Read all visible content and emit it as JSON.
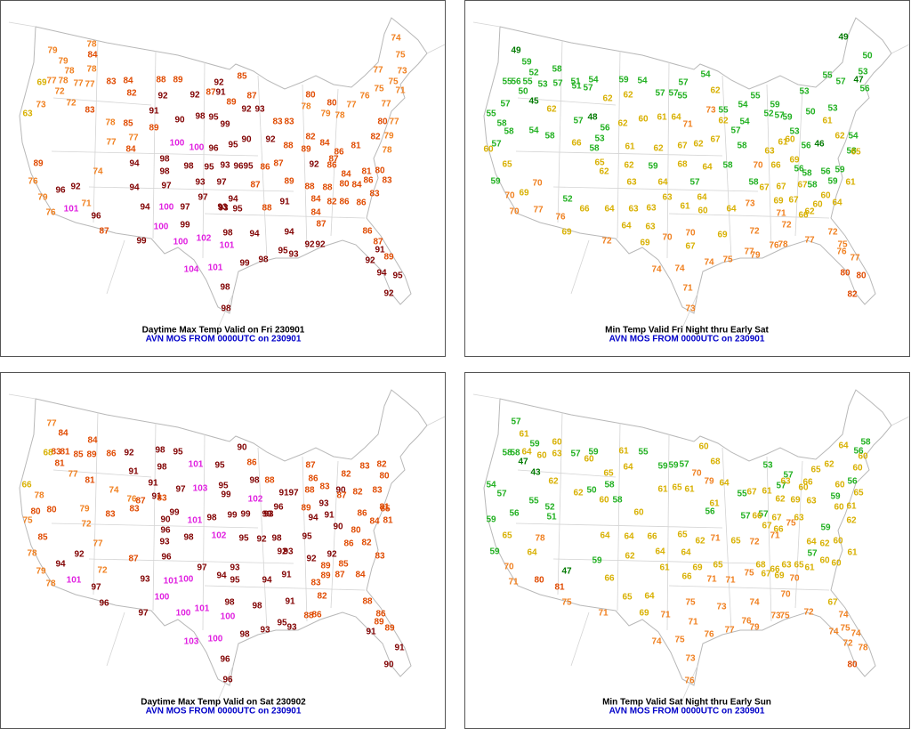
{
  "color_scale": [
    {
      "min": 100,
      "color": "#e020e0"
    },
    {
      "min": 90,
      "color": "#800000"
    },
    {
      "min": 80,
      "color": "#e04a00"
    },
    {
      "min": 70,
      "color": "#f08020"
    },
    {
      "min": 60,
      "color": "#d8b000"
    },
    {
      "min": 50,
      "color": "#20b020"
    },
    {
      "min": 0,
      "color": "#007a00"
    }
  ],
  "panels": [
    {
      "title": "Daytime Max Temp Valid on Fri 230901",
      "subtitle": "AVN MOS FROM 0000UTC on 230901",
      "values": [
        79,
        79,
        78,
        78,
        77,
        78,
        77,
        77,
        69,
        72,
        72,
        73,
        63,
        83,
        78,
        84,
        83,
        84,
        82,
        88,
        89,
        92,
        85,
        92,
        92,
        87,
        91,
        89,
        87,
        91,
        90,
        98,
        95,
        99,
        92,
        93,
        83,
        83,
        80,
        78,
        79,
        80,
        78,
        77,
        76,
        77,
        74,
        75,
        73,
        75,
        71,
        75,
        77,
        80,
        77,
        78,
        85,
        89,
        77,
        77,
        84,
        100,
        100,
        96,
        95,
        90,
        92,
        88,
        82,
        84,
        86,
        81,
        82,
        79,
        78,
        80,
        81,
        84,
        87,
        89,
        92,
        86,
        86,
        95,
        87,
        98,
        98,
        94,
        98,
        95,
        93,
        96,
        74,
        92,
        96,
        89,
        76,
        79,
        76,
        71,
        96,
        101,
        94,
        97,
        97,
        94,
        97,
        93,
        93,
        95,
        87,
        88,
        91,
        89,
        88,
        88,
        80,
        84,
        86,
        83,
        83,
        84,
        82,
        86,
        86,
        94,
        100,
        97,
        100,
        99,
        93,
        84,
        87,
        87,
        99,
        100,
        102,
        98,
        101,
        94,
        94,
        92,
        92,
        93,
        95,
        98,
        99,
        104,
        101,
        86,
        87,
        91,
        89,
        95,
        92,
        94,
        92,
        98,
        98
      ]
    },
    {
      "title": "Min Temp Valid Fri Night thru Early Sat",
      "subtitle": "AVN MOS FROM 0000UTC on 230901",
      "values": [
        49,
        59,
        52,
        58,
        55,
        56,
        55,
        53,
        50,
        57,
        51,
        54,
        57,
        51,
        59,
        54,
        57,
        54,
        57,
        45,
        55,
        58,
        62,
        62,
        62,
        57,
        57,
        55,
        62,
        73,
        55,
        54,
        55,
        59,
        53,
        55,
        49,
        50,
        53,
        47,
        56,
        57,
        50,
        53,
        61,
        59,
        57,
        52,
        54,
        62,
        57,
        48,
        56,
        62,
        60,
        61,
        64,
        71,
        58,
        54,
        58,
        57,
        60,
        66,
        53,
        58,
        61,
        62,
        67,
        62,
        67,
        57,
        58,
        63,
        61,
        60,
        53,
        46,
        56,
        62,
        54,
        58,
        65,
        65,
        65,
        62,
        59,
        68,
        64,
        58,
        70,
        66,
        69,
        58,
        56,
        59,
        59,
        56,
        59,
        70,
        69,
        70,
        62,
        63,
        64,
        57,
        58,
        67,
        67,
        67,
        58,
        60,
        60,
        64,
        61,
        52,
        77,
        70,
        76,
        66,
        64,
        63,
        63,
        63,
        61,
        60,
        64,
        64,
        73,
        69,
        67,
        62,
        66,
        71,
        69,
        64,
        63,
        70,
        70,
        67,
        69,
        72,
        72,
        72,
        72,
        69,
        75,
        76,
        77,
        76,
        78,
        77,
        79,
        77,
        75,
        74,
        74,
        74,
        71,
        73,
        80,
        80,
        82
      ]
    },
    {
      "title": "Daytime Max Temp Valid on Sat 230902",
      "subtitle": "AVN MOS FROM 0000UTC on 230901",
      "values": [
        77,
        84,
        84,
        83,
        68,
        81,
        85,
        89,
        86,
        92,
        98,
        95,
        90,
        81,
        77,
        81,
        66,
        78,
        80,
        75,
        80,
        85,
        74,
        83,
        76,
        91,
        91,
        98,
        91,
        97,
        101,
        95,
        86,
        103,
        95,
        99,
        88,
        98,
        87,
        86,
        83,
        88,
        91,
        97,
        96,
        93,
        79,
        72,
        77,
        83,
        87,
        83,
        99,
        90,
        96,
        93,
        101,
        98,
        99,
        99,
        102,
        99,
        102,
        98,
        95,
        92,
        98,
        89,
        93,
        82,
        83,
        82,
        80,
        83,
        81,
        82,
        90,
        87,
        91,
        94,
        95,
        90,
        80,
        86,
        84,
        81,
        85,
        83,
        82,
        86,
        92,
        92,
        93,
        92,
        87,
        72,
        92,
        94,
        78,
        79,
        78,
        101,
        97,
        96,
        93,
        101,
        100,
        96,
        97,
        93,
        94,
        95,
        94,
        91,
        89,
        87,
        89,
        85,
        84,
        83,
        82,
        88,
        97,
        100,
        100,
        101,
        98,
        100,
        98,
        91,
        88,
        86,
        95,
        93,
        93,
        98,
        103,
        100,
        96,
        96,
        86,
        89,
        89,
        91,
        91,
        90
      ]
    },
    {
      "title": "Min Temp Valid Sat Night thru Early Sun",
      "subtitle": "AVN MOS FROM 0000UTC on 230901",
      "values": [
        57,
        61,
        59,
        58,
        58,
        64,
        60,
        60,
        63,
        57,
        60,
        59,
        47,
        43,
        62,
        61,
        55,
        59,
        59,
        57,
        70,
        60,
        68,
        53,
        54,
        57,
        55,
        52,
        59,
        56,
        51,
        62,
        50,
        65,
        64,
        58,
        60,
        58,
        60,
        61,
        65,
        61,
        79,
        64,
        61,
        56,
        55,
        67,
        61,
        57,
        62,
        69,
        60,
        63,
        62,
        64,
        58,
        60,
        60,
        56,
        60,
        56,
        65,
        59,
        61,
        60,
        62,
        65,
        66,
        57,
        63,
        57,
        57,
        67,
        63,
        59,
        64,
        60,
        62,
        61,
        60,
        60,
        57,
        61,
        65,
        63,
        66,
        67,
        68,
        72,
        71,
        75,
        66,
        67,
        66,
        65,
        78,
        64,
        59,
        70,
        71,
        47,
        80,
        81,
        75,
        59,
        64,
        66,
        65,
        62,
        71,
        65,
        64,
        62,
        64,
        64,
        69,
        71,
        71,
        61,
        66,
        65,
        75,
        69,
        70,
        70,
        66,
        65,
        64,
        75,
        73,
        74,
        73,
        75,
        72,
        67,
        71,
        69,
        71,
        71,
        74,
        75,
        74,
        74,
        72,
        78,
        80,
        74,
        75,
        76,
        77,
        79,
        76,
        73,
        76
      ]
    }
  ]
}
